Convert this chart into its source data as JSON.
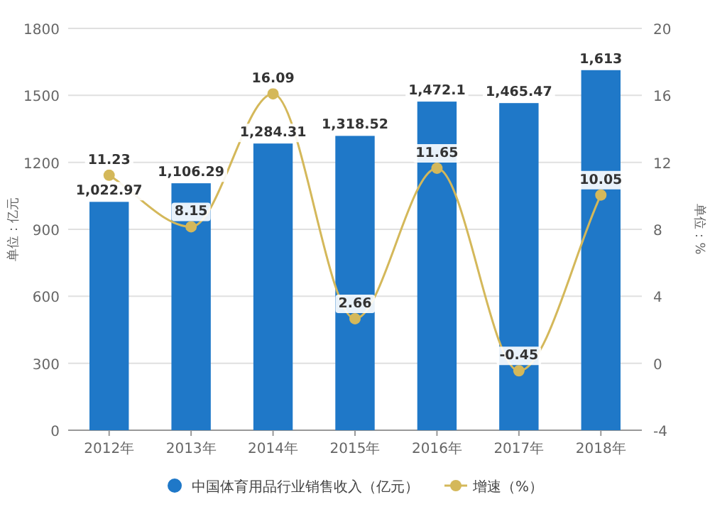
{
  "chart_data": {
    "type": "bar",
    "ylabel": "单位：亿元",
    "y2label": "单位：%",
    "categories": [
      "2012年",
      "2013年",
      "2014年",
      "2015年",
      "2016年",
      "2017年",
      "2018年"
    ],
    "series": [
      {
        "name": "中国体育用品行业销售收入（亿元）",
        "color": "#1f78c8",
        "values": [
          1022.97,
          1106.29,
          1284.31,
          1318.52,
          1472.1,
          1465.47,
          1613
        ],
        "value_labels": [
          "1,022.97",
          "1,106.29",
          "1,284.31",
          "1,318.52",
          "1,472.1",
          "1,465.47",
          "1,613"
        ]
      },
      {
        "name": "增速（%）",
        "type": "line",
        "axis": "y2",
        "color": "#d4b85a",
        "marker": "circle",
        "values": [
          11.23,
          8.15,
          16.09,
          2.66,
          11.65,
          -0.45,
          10.05
        ],
        "value_labels": [
          "11.23",
          "8.15",
          "16.09",
          "2.66",
          "11.65",
          "-0.45",
          "10.05"
        ]
      }
    ],
    "ylim": [
      0,
      1800
    ],
    "yticks": [
      0,
      300,
      600,
      900,
      1200,
      1500,
      1800
    ],
    "y2lim": [
      -4,
      20
    ],
    "y2ticks": [
      -4,
      0,
      4,
      8,
      12,
      16,
      20
    ],
    "grid": "y",
    "legend": "bottom"
  }
}
